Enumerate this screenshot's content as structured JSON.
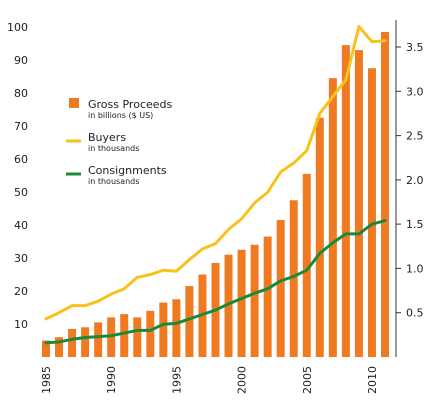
{
  "chart_data": {
    "type": "bar+line",
    "x": [
      1985,
      1986,
      1987,
      1988,
      1989,
      1990,
      1991,
      1992,
      1993,
      1994,
      1995,
      1996,
      1997,
      1998,
      1999,
      2000,
      2001,
      2002,
      2003,
      2004,
      2005,
      2006,
      2007,
      2008,
      2009,
      2010,
      2011
    ],
    "x_ticks": [
      "1985",
      "1990",
      "1995",
      "2000",
      "2005",
      "2010"
    ],
    "left_axis": {
      "ticks": [
        "10",
        "20",
        "30",
        "40",
        "50",
        "60",
        "70",
        "80",
        "90",
        "100"
      ],
      "ylim": [
        0,
        100
      ]
    },
    "right_axis": {
      "ticks": [
        "0.5",
        "1.0",
        "1.5",
        "2.0",
        "2.5",
        "3.0",
        "3.5"
      ],
      "ylim": [
        0,
        3.78
      ]
    },
    "series": [
      {
        "name": "Gross Proceeds",
        "subtitle": "in billions ($ US)",
        "kind": "bar",
        "axis": "left",
        "color": "#f07a22",
        "values": [
          5,
          6,
          8.5,
          9,
          10.5,
          12,
          13,
          12,
          14,
          16.5,
          17.5,
          21.5,
          25,
          28.5,
          31,
          32.5,
          34,
          36.5,
          41.5,
          47.5,
          55.5,
          72.5,
          84.5,
          94.5,
          93,
          87.5,
          98.5
        ]
      },
      {
        "name": "Buyers",
        "subtitle": "in thousands",
        "kind": "line",
        "axis": "right",
        "color": "#f8c21c",
        "values": [
          0.43,
          0.5,
          0.58,
          0.58,
          0.63,
          0.71,
          0.77,
          0.9,
          0.93,
          0.98,
          0.97,
          1.1,
          1.22,
          1.28,
          1.44,
          1.56,
          1.74,
          1.86,
          2.09,
          2.19,
          2.33,
          2.75,
          2.94,
          3.13,
          3.73,
          3.56,
          3.57
        ]
      },
      {
        "name": "Consignments",
        "subtitle": "in thousands",
        "kind": "line",
        "axis": "right",
        "color": "#1a8a3a",
        "values": [
          0.16,
          0.17,
          0.2,
          0.22,
          0.23,
          0.24,
          0.27,
          0.3,
          0.3,
          0.37,
          0.38,
          0.43,
          0.48,
          0.53,
          0.6,
          0.66,
          0.72,
          0.77,
          0.86,
          0.91,
          0.98,
          1.17,
          1.29,
          1.39,
          1.39,
          1.5,
          1.54
        ]
      }
    ],
    "grid": false,
    "legend_position": "top-left"
  }
}
